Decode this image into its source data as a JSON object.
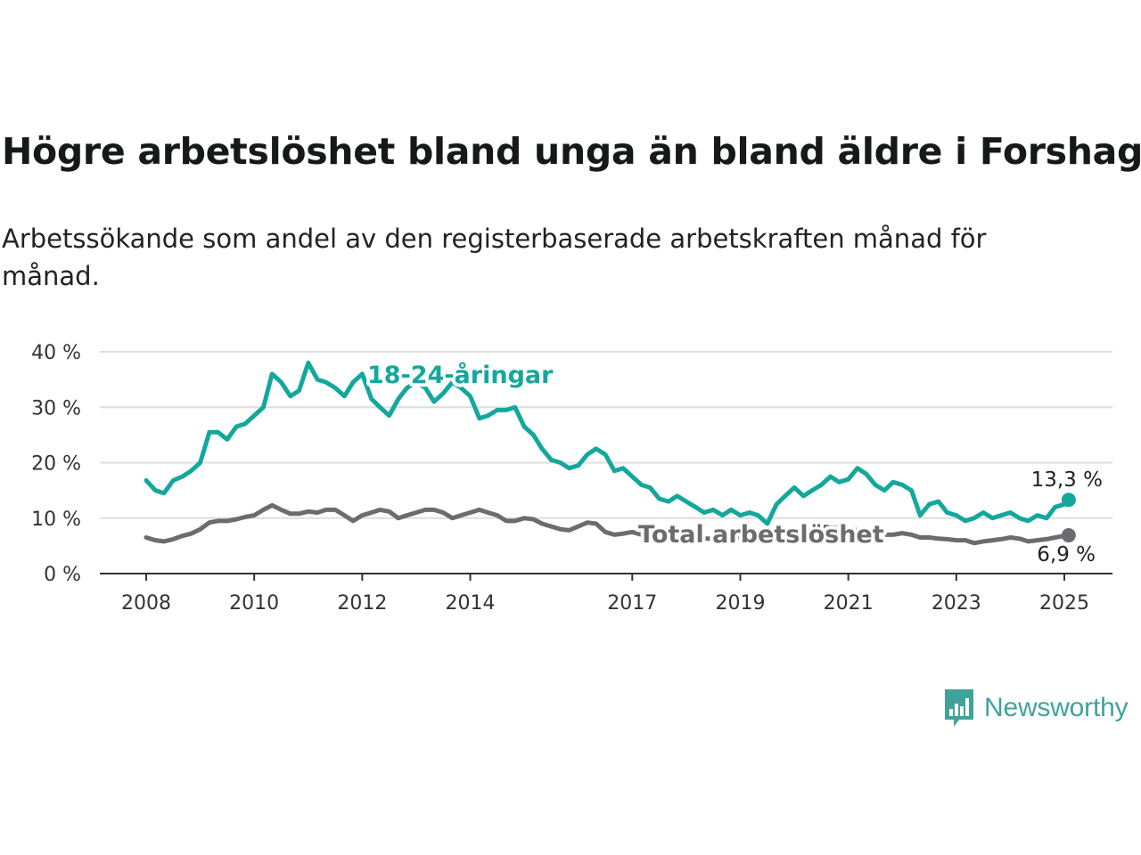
{
  "title": "Högre arbetslöshet bland unga än bland äldre i Forshaga",
  "subtitle": "Arbetssökande som andel av den registerbaserade arbetskraften månad för månad.",
  "brand": {
    "name": "Newsworthy",
    "icon": "bar-chart-speech-bubble-icon",
    "color": "#3fa39a"
  },
  "chart_data": {
    "type": "line",
    "ylim": [
      0,
      40
    ],
    "xlim": [
      2008,
      2025.5
    ],
    "grid": true,
    "y_tick_values": [
      0,
      10,
      20,
      30,
      40
    ],
    "y_tick_labels": [
      "0 %",
      "10 %",
      "20 %",
      "30 %",
      "40 %"
    ],
    "x_tick_values": [
      2008,
      2010,
      2012,
      2014,
      2017,
      2019,
      2021,
      2023,
      2025
    ],
    "x_tick_labels": [
      "2008",
      "2010",
      "2012",
      "2014",
      "2017",
      "2019",
      "2021",
      "2023",
      "2025"
    ],
    "series": [
      {
        "name": "18-24-åringar",
        "color": "#13a89b",
        "end_label": "13,3 %",
        "points": [
          [
            2008.0,
            16.8
          ],
          [
            2008.17,
            15.0
          ],
          [
            2008.33,
            14.5
          ],
          [
            2008.5,
            16.8
          ],
          [
            2008.67,
            17.5
          ],
          [
            2008.83,
            18.5
          ],
          [
            2009.0,
            20.0
          ],
          [
            2009.17,
            25.5
          ],
          [
            2009.33,
            25.5
          ],
          [
            2009.5,
            24.2
          ],
          [
            2009.67,
            26.5
          ],
          [
            2009.83,
            27.0
          ],
          [
            2010.0,
            28.5
          ],
          [
            2010.17,
            30.0
          ],
          [
            2010.33,
            36.0
          ],
          [
            2010.5,
            34.5
          ],
          [
            2010.67,
            32.0
          ],
          [
            2010.83,
            33.0
          ],
          [
            2011.0,
            38.0
          ],
          [
            2011.17,
            35.0
          ],
          [
            2011.33,
            34.5
          ],
          [
            2011.5,
            33.5
          ],
          [
            2011.67,
            32.0
          ],
          [
            2011.83,
            34.5
          ],
          [
            2012.0,
            36.0
          ],
          [
            2012.17,
            31.5
          ],
          [
            2012.33,
            30.0
          ],
          [
            2012.5,
            28.5
          ],
          [
            2012.67,
            31.5
          ],
          [
            2012.83,
            33.5
          ],
          [
            2013.0,
            34.5
          ],
          [
            2013.17,
            33.5
          ],
          [
            2013.33,
            31.0
          ],
          [
            2013.5,
            32.5
          ],
          [
            2013.67,
            34.5
          ],
          [
            2013.83,
            33.5
          ],
          [
            2014.0,
            32.0
          ],
          [
            2014.17,
            28.0
          ],
          [
            2014.33,
            28.5
          ],
          [
            2014.5,
            29.5
          ],
          [
            2014.67,
            29.5
          ],
          [
            2014.83,
            30.0
          ],
          [
            2015.0,
            26.5
          ],
          [
            2015.17,
            25.0
          ],
          [
            2015.33,
            22.5
          ],
          [
            2015.5,
            20.5
          ],
          [
            2015.67,
            20.0
          ],
          [
            2015.83,
            19.0
          ],
          [
            2016.0,
            19.5
          ],
          [
            2016.17,
            21.5
          ],
          [
            2016.33,
            22.5
          ],
          [
            2016.5,
            21.5
          ],
          [
            2016.67,
            18.5
          ],
          [
            2016.83,
            19.0
          ],
          [
            2017.0,
            17.5
          ],
          [
            2017.17,
            16.0
          ],
          [
            2017.33,
            15.5
          ],
          [
            2017.5,
            13.5
          ],
          [
            2017.67,
            13.0
          ],
          [
            2017.83,
            14.0
          ],
          [
            2018.0,
            13.0
          ],
          [
            2018.17,
            12.0
          ],
          [
            2018.33,
            11.0
          ],
          [
            2018.5,
            11.5
          ],
          [
            2018.67,
            10.5
          ],
          [
            2018.83,
            11.5
          ],
          [
            2019.0,
            10.5
          ],
          [
            2019.17,
            11.0
          ],
          [
            2019.33,
            10.5
          ],
          [
            2019.5,
            9.0
          ],
          [
            2019.67,
            12.5
          ],
          [
            2019.83,
            14.0
          ],
          [
            2020.0,
            15.5
          ],
          [
            2020.17,
            14.0
          ],
          [
            2020.33,
            15.0
          ],
          [
            2020.5,
            16.0
          ],
          [
            2020.67,
            17.5
          ],
          [
            2020.83,
            16.5
          ],
          [
            2021.0,
            17.0
          ],
          [
            2021.17,
            19.0
          ],
          [
            2021.33,
            18.0
          ],
          [
            2021.5,
            16.0
          ],
          [
            2021.67,
            15.0
          ],
          [
            2021.83,
            16.5
          ],
          [
            2022.0,
            16.0
          ],
          [
            2022.17,
            15.0
          ],
          [
            2022.33,
            10.5
          ],
          [
            2022.5,
            12.5
          ],
          [
            2022.67,
            13.0
          ],
          [
            2022.83,
            11.0
          ],
          [
            2023.0,
            10.5
          ],
          [
            2023.17,
            9.5
          ],
          [
            2023.33,
            10.0
          ],
          [
            2023.5,
            11.0
          ],
          [
            2023.67,
            10.0
          ],
          [
            2023.83,
            10.5
          ],
          [
            2024.0,
            11.0
          ],
          [
            2024.17,
            10.0
          ],
          [
            2024.33,
            9.5
          ],
          [
            2024.5,
            10.5
          ],
          [
            2024.67,
            10.0
          ],
          [
            2024.83,
            12.0
          ],
          [
            2025.0,
            12.5
          ],
          [
            2025.08,
            13.3
          ]
        ]
      },
      {
        "name": "Total arbetslöshet",
        "color": "#6b6b70",
        "end_label": "6,9 %",
        "points": [
          [
            2008.0,
            6.5
          ],
          [
            2008.17,
            6.0
          ],
          [
            2008.33,
            5.8
          ],
          [
            2008.5,
            6.2
          ],
          [
            2008.67,
            6.8
          ],
          [
            2008.83,
            7.2
          ],
          [
            2009.0,
            8.0
          ],
          [
            2009.17,
            9.2
          ],
          [
            2009.33,
            9.5
          ],
          [
            2009.5,
            9.5
          ],
          [
            2009.67,
            9.8
          ],
          [
            2009.83,
            10.2
          ],
          [
            2010.0,
            10.5
          ],
          [
            2010.17,
            11.5
          ],
          [
            2010.33,
            12.3
          ],
          [
            2010.5,
            11.5
          ],
          [
            2010.67,
            10.8
          ],
          [
            2010.83,
            10.8
          ],
          [
            2011.0,
            11.2
          ],
          [
            2011.17,
            11.0
          ],
          [
            2011.33,
            11.5
          ],
          [
            2011.5,
            11.5
          ],
          [
            2011.67,
            10.5
          ],
          [
            2011.83,
            9.5
          ],
          [
            2012.0,
            10.5
          ],
          [
            2012.17,
            11.0
          ],
          [
            2012.33,
            11.5
          ],
          [
            2012.5,
            11.2
          ],
          [
            2012.67,
            10.0
          ],
          [
            2012.83,
            10.5
          ],
          [
            2013.0,
            11.0
          ],
          [
            2013.17,
            11.5
          ],
          [
            2013.33,
            11.5
          ],
          [
            2013.5,
            11.0
          ],
          [
            2013.67,
            10.0
          ],
          [
            2013.83,
            10.5
          ],
          [
            2014.0,
            11.0
          ],
          [
            2014.17,
            11.5
          ],
          [
            2014.33,
            11.0
          ],
          [
            2014.5,
            10.5
          ],
          [
            2014.67,
            9.5
          ],
          [
            2014.83,
            9.5
          ],
          [
            2015.0,
            10.0
          ],
          [
            2015.17,
            9.8
          ],
          [
            2015.33,
            9.0
          ],
          [
            2015.5,
            8.5
          ],
          [
            2015.67,
            8.0
          ],
          [
            2015.83,
            7.8
          ],
          [
            2016.0,
            8.5
          ],
          [
            2016.17,
            9.2
          ],
          [
            2016.33,
            9.0
          ],
          [
            2016.5,
            7.5
          ],
          [
            2016.67,
            7.0
          ],
          [
            2016.83,
            7.2
          ],
          [
            2017.0,
            7.5
          ],
          [
            2017.17,
            7.0
          ],
          [
            2017.33,
            7.0
          ],
          [
            2017.5,
            6.8
          ],
          [
            2017.67,
            6.8
          ],
          [
            2017.83,
            6.7
          ],
          [
            2018.0,
            6.5
          ],
          [
            2018.17,
            6.5
          ],
          [
            2018.33,
            6.3
          ],
          [
            2018.5,
            6.3
          ],
          [
            2018.67,
            6.5
          ],
          [
            2018.83,
            6.5
          ],
          [
            2019.0,
            6.5
          ],
          [
            2019.17,
            6.5
          ],
          [
            2019.33,
            6.8
          ],
          [
            2019.5,
            7.2
          ],
          [
            2019.67,
            7.5
          ],
          [
            2019.83,
            7.8
          ],
          [
            2020.0,
            8.0
          ],
          [
            2020.17,
            8.2
          ],
          [
            2020.33,
            8.5
          ],
          [
            2020.5,
            8.5
          ],
          [
            2020.67,
            8.3
          ],
          [
            2020.83,
            8.2
          ],
          [
            2021.0,
            8.0
          ],
          [
            2021.17,
            7.8
          ],
          [
            2021.33,
            7.5
          ],
          [
            2021.5,
            7.2
          ],
          [
            2021.67,
            7.0
          ],
          [
            2021.83,
            7.0
          ],
          [
            2022.0,
            7.3
          ],
          [
            2022.17,
            7.0
          ],
          [
            2022.33,
            6.5
          ],
          [
            2022.5,
            6.5
          ],
          [
            2022.67,
            6.3
          ],
          [
            2022.83,
            6.2
          ],
          [
            2023.0,
            6.0
          ],
          [
            2023.17,
            6.0
          ],
          [
            2023.33,
            5.5
          ],
          [
            2023.5,
            5.8
          ],
          [
            2023.67,
            6.0
          ],
          [
            2023.83,
            6.2
          ],
          [
            2024.0,
            6.5
          ],
          [
            2024.17,
            6.3
          ],
          [
            2024.33,
            5.8
          ],
          [
            2024.5,
            6.0
          ],
          [
            2024.67,
            6.2
          ],
          [
            2024.83,
            6.5
          ],
          [
            2025.0,
            6.8
          ],
          [
            2025.08,
            6.9
          ]
        ]
      }
    ]
  }
}
